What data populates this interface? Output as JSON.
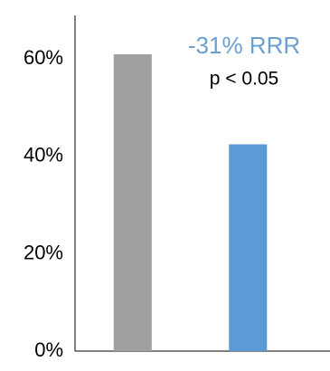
{
  "chart_data": {
    "type": "bar",
    "annotations": [
      "-31% RRR",
      "p < 0.05"
    ],
    "annotation_colors": [
      "#6a9fd0",
      "#000000"
    ],
    "categories": [
      null,
      null
    ],
    "values": [
      61,
      42.5
    ],
    "colors": [
      "#a0a0a0",
      "#5b9bd5"
    ],
    "ylim": [
      0,
      69
    ],
    "yticks": [
      {
        "value": 0,
        "label": "0%"
      },
      {
        "value": 20,
        "label": "20%"
      },
      {
        "value": 40,
        "label": "40%"
      },
      {
        "value": 60,
        "label": "60%"
      }
    ],
    "grid": false
  }
}
